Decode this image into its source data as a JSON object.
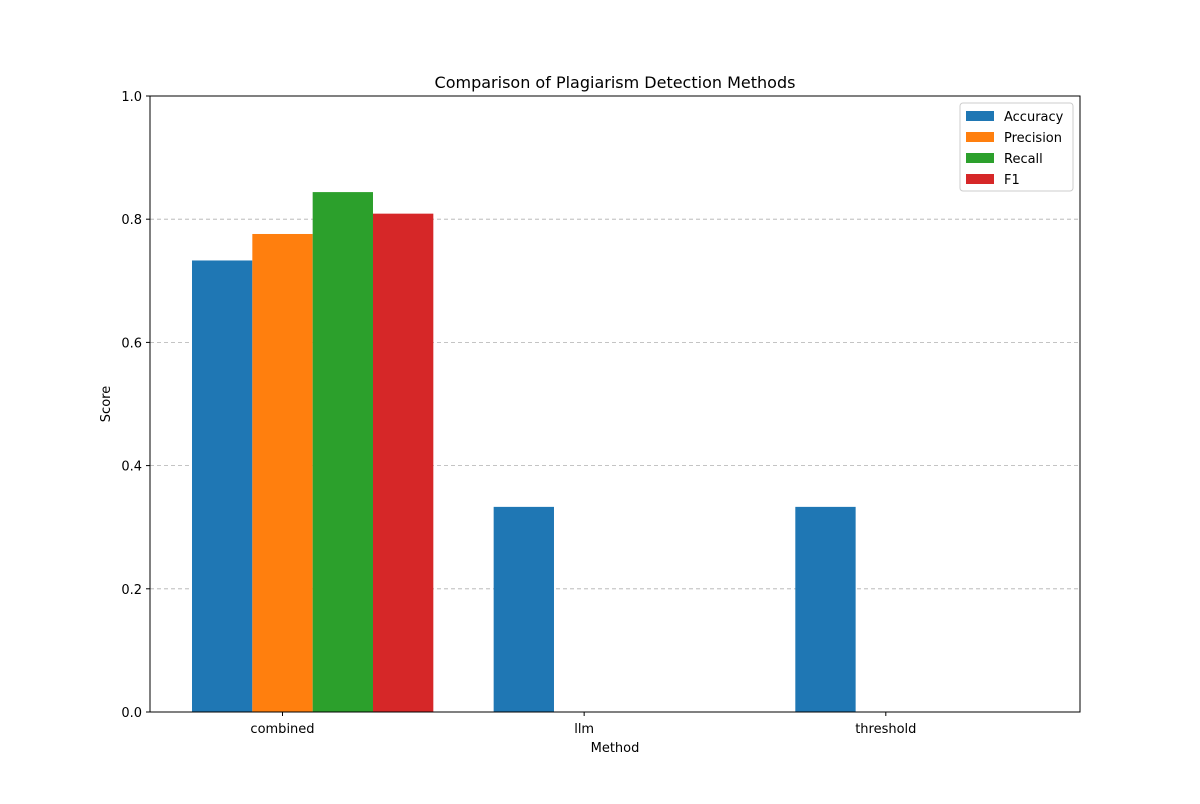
{
  "chart_data": {
    "type": "bar",
    "title": "Comparison of Plagiarism Detection Methods",
    "xlabel": "Method",
    "ylabel": "Score",
    "categories": [
      "combined",
      "llm",
      "threshold"
    ],
    "series": [
      {
        "name": "Accuracy",
        "color": "#1f77b4",
        "values": [
          0.733,
          0.333,
          0.333
        ]
      },
      {
        "name": "Precision",
        "color": "#ff7f0e",
        "values": [
          0.776,
          0.0,
          0.0
        ]
      },
      {
        "name": "Recall",
        "color": "#2ca02c",
        "values": [
          0.844,
          0.0,
          0.0
        ]
      },
      {
        "name": "F1",
        "color": "#d62728",
        "values": [
          0.809,
          0.0,
          0.0
        ]
      }
    ],
    "ylim": [
      0,
      1.0
    ],
    "yticks": [
      "0.0",
      "0.2",
      "0.4",
      "0.6",
      "0.8",
      "1.0"
    ],
    "grid": {
      "axis": "y",
      "style": "dashed"
    },
    "legend_position": "top-right"
  }
}
